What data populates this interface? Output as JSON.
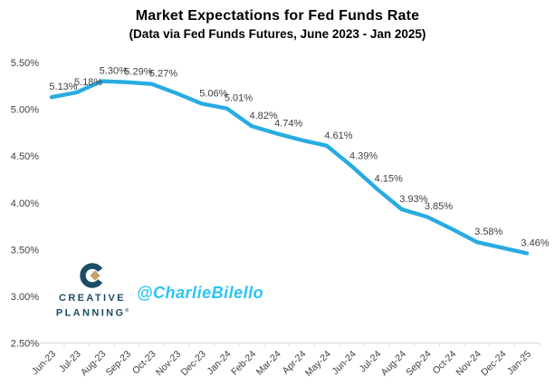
{
  "header": {
    "title": "Market Expectations for Fed Funds Rate",
    "subtitle": "(Data via Fed Funds Futures, June 2023 - Jan 2025)"
  },
  "chart_data": {
    "type": "line",
    "title": "Market Expectations for Fed Funds Rate",
    "subtitle": "(Data via Fed Funds Futures, June 2023 - Jan 2025)",
    "categories": [
      "Jun-23",
      "Jul-23",
      "Aug-23",
      "Sep-23",
      "Oct-23",
      "Nov-23",
      "Dec-23",
      "Jan-24",
      "Feb-24",
      "Mar-24",
      "Apr-24",
      "May-24",
      "Jun-24",
      "Jul-24",
      "Aug-24",
      "Sep-24",
      "Oct-24",
      "Nov-24",
      "Dec-24",
      "Jan-25"
    ],
    "values": [
      5.13,
      5.18,
      5.3,
      5.29,
      5.27,
      5.17,
      5.06,
      5.01,
      4.82,
      4.74,
      4.67,
      4.61,
      4.39,
      4.15,
      3.93,
      3.85,
      3.72,
      3.58,
      3.52,
      3.46
    ],
    "data_labels": [
      "5.13%",
      "5.18%",
      "5.30%",
      "5.29%",
      "5.27%",
      null,
      "5.06%",
      "5.01%",
      "4.82%",
      "4.74%",
      null,
      "4.61%",
      "4.39%",
      "4.15%",
      "3.93%",
      "3.85%",
      null,
      "3.58%",
      null,
      "3.46%"
    ],
    "y_axis": {
      "ticks": [
        "5.50%",
        "5.00%",
        "4.50%",
        "4.00%",
        "3.50%",
        "3.00%",
        "2.50%"
      ],
      "min": 2.5,
      "max": 5.5,
      "grid": false
    },
    "x_axis": {
      "label_rotation_deg": -45
    },
    "legend": "none",
    "xlabel": "",
    "ylabel": ""
  },
  "branding": {
    "logo_line1": "CREATIVE",
    "logo_line2": "PLANNING",
    "reg_mark": "®",
    "handle": "@CharlieBilello"
  },
  "colors": {
    "line": "#29ABE2",
    "data_label": "#404040",
    "axis_label": "#404040",
    "axis_line": "#D9D9D9",
    "title": "#000000",
    "logo_navy": "#1C4D66",
    "logo_gold": "#C2A26D",
    "handle_cyan": "#2BC4F3",
    "background": "#FFFFFF"
  }
}
